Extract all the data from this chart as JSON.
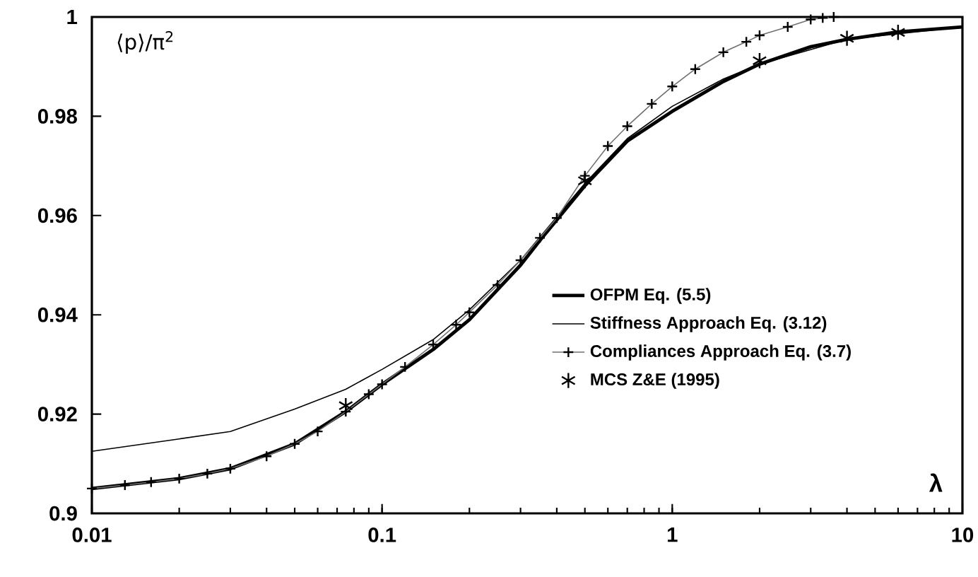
{
  "chart_data": {
    "type": "line",
    "xlabel": "λ",
    "ylabel": "⟨p⟩/π$^{2}$",
    "log": "x",
    "xlim": [
      0.01,
      10
    ],
    "ylim": [
      0.9,
      1
    ],
    "xticks": [
      0.01,
      0.1,
      1,
      10
    ],
    "yticks": [
      0.9,
      0.92,
      0.94,
      0.96,
      0.98,
      1
    ],
    "grid": false,
    "legend": "right",
    "line_style": "solid",
    "series": [
      {
        "name": "OFPM Eq. (5.5)",
        "color": "#000000",
        "marker": "none",
        "x": [
          0.01,
          0.02,
          0.03,
          0.05,
          0.075,
          0.1,
          0.15,
          0.2,
          0.3,
          0.35,
          0.5,
          0.7,
          1,
          1.5,
          2,
          3,
          4,
          6,
          10
        ],
        "values": [
          0.905,
          0.907,
          0.909,
          0.914,
          0.9205,
          0.926,
          0.933,
          0.939,
          0.95,
          0.955,
          0.966,
          0.975,
          0.981,
          0.987,
          0.9905,
          0.994,
          0.9955,
          0.997,
          0.998
        ]
      },
      {
        "name": "Stiffness Approach Eq. (3.12)",
        "color": "#000000",
        "marker": "none",
        "x": [
          0.01,
          0.02,
          0.03,
          0.05,
          0.075,
          0.1,
          0.15,
          0.2,
          0.3,
          0.5,
          0.7,
          1,
          1.5,
          2,
          4,
          10
        ],
        "values": [
          0.9125,
          0.915,
          0.9165,
          0.921,
          0.925,
          0.929,
          0.935,
          0.941,
          0.951,
          0.9665,
          0.9755,
          0.982,
          0.9875,
          0.9905,
          0.9955,
          0.998
        ]
      },
      {
        "name": "Compliances Approach Eq. (3.7)",
        "color": "#707070",
        "marker": "cross",
        "x": [
          0.01,
          0.013,
          0.016,
          0.02,
          0.025,
          0.03,
          0.04,
          0.05,
          0.06,
          0.075,
          0.09,
          0.1,
          0.12,
          0.15,
          0.18,
          0.2,
          0.25,
          0.3,
          0.35,
          0.4,
          0.5,
          0.6,
          0.7,
          0.85,
          1,
          1.2,
          1.5,
          1.8,
          2,
          2.5,
          3,
          3.3,
          3.6
        ],
        "values": [
          0.905,
          0.9057,
          0.9063,
          0.907,
          0.908,
          0.909,
          0.9115,
          0.914,
          0.9165,
          0.9205,
          0.924,
          0.926,
          0.9295,
          0.934,
          0.938,
          0.9405,
          0.946,
          0.951,
          0.9555,
          0.9595,
          0.968,
          0.974,
          0.978,
          0.9825,
          0.986,
          0.9895,
          0.9929,
          0.995,
          0.9963,
          0.998,
          0.9995,
          0.9998,
          1.0
        ]
      },
      {
        "name": "MCS Z&E (1995)",
        "type": "scatter",
        "color": "#000000",
        "marker": "cross",
        "x": [
          0.075,
          0.5,
          2,
          4,
          6
        ],
        "values": [
          0.9217,
          0.967,
          0.9912,
          0.9957,
          0.9969
        ]
      }
    ]
  }
}
